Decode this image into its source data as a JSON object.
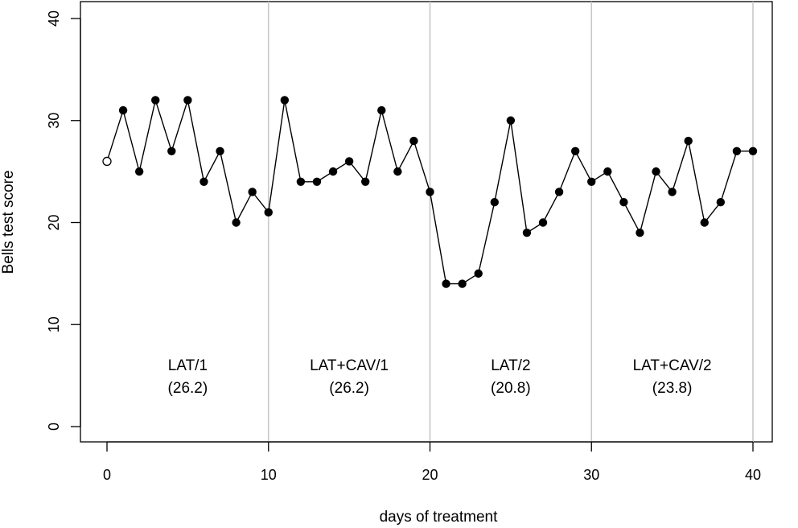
{
  "chart_data": {
    "type": "line",
    "title": "",
    "xlabel": "days of treatment",
    "ylabel": "Bells test score",
    "xlim": [
      0,
      40
    ],
    "ylim": [
      0,
      40
    ],
    "xticks": [
      "0",
      "10",
      "20",
      "30",
      "40"
    ],
    "yticks": [
      "0",
      "10",
      "20",
      "30",
      "40"
    ],
    "phase_boundaries": [
      10,
      20,
      30,
      40
    ],
    "baseline": {
      "day": 0,
      "score": 26,
      "marker": "open-circle"
    },
    "series": [
      {
        "name": "Bells test score",
        "marker": "filled-circle",
        "x": [
          1,
          2,
          3,
          4,
          5,
          6,
          7,
          8,
          9,
          10,
          11,
          12,
          13,
          14,
          15,
          16,
          17,
          18,
          19,
          20,
          21,
          22,
          23,
          24,
          25,
          26,
          27,
          28,
          29,
          30,
          31,
          32,
          33,
          34,
          35,
          36,
          37,
          38,
          39,
          40
        ],
        "values": [
          31,
          25,
          32,
          27,
          32,
          24,
          27,
          20,
          23,
          21,
          32,
          24,
          24,
          25,
          26,
          24,
          31,
          25,
          28,
          23,
          14,
          14,
          15,
          22,
          30,
          19,
          20,
          23,
          27,
          24,
          25,
          22,
          19,
          25,
          23,
          28,
          20,
          22,
          27,
          27
        ]
      }
    ],
    "phases": [
      {
        "label": "LAT/1",
        "mean": "(26.2)",
        "center_day": 5
      },
      {
        "label": "LAT+CAV/1",
        "mean": "(26.2)",
        "center_day": 15
      },
      {
        "label": "LAT/2",
        "mean": "(20.8)",
        "center_day": 25
      },
      {
        "label": "LAT+CAV/2",
        "mean": "(23.8)",
        "center_day": 35
      }
    ]
  }
}
